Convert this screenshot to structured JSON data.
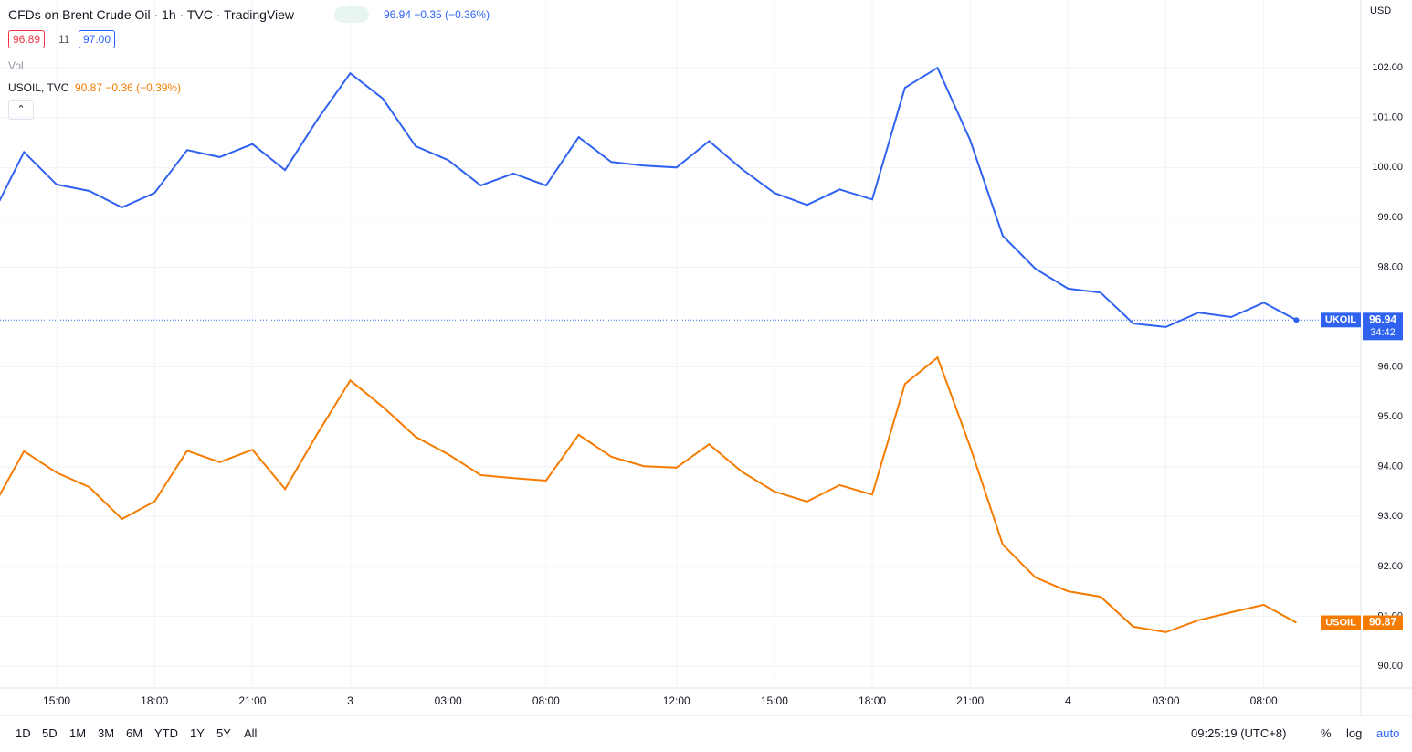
{
  "header": {
    "title": "CFDs on Brent Crude Oil · 1h · TVC · TradingView",
    "quote": "96.94 −0.35 (−0.36%)",
    "bid": "96.89",
    "spread": "11",
    "ask": "97.00",
    "vol": "Vol",
    "compare_symbol": "USOIL, TVC",
    "compare_quote": "90.87 −0.36 (−0.39%)",
    "currency": "USD",
    "countdown": "34:42"
  },
  "toolbar": {
    "ranges": [
      "1D",
      "5D",
      "1M",
      "3M",
      "6M",
      "YTD",
      "1Y",
      "5Y",
      "All"
    ],
    "clock": "09:25:19 (UTC+8)",
    "percent": "%",
    "log": "log",
    "auto": "auto"
  },
  "chart_data": {
    "type": "line",
    "categories": [
      null,
      null,
      "15:00",
      null,
      null,
      "18:00",
      null,
      null,
      "21:00",
      null,
      null,
      "3",
      null,
      null,
      "03:00",
      null,
      null,
      "08:00",
      null,
      null,
      null,
      "12:00",
      null,
      null,
      "15:00",
      null,
      null,
      "18:00",
      null,
      null,
      "21:00",
      null,
      null,
      "4",
      null,
      null,
      "03:00",
      null,
      null,
      "08:00",
      null
    ],
    "series": [
      {
        "name": "UKOIL",
        "color": "#2f62f0",
        "values": [
          99.01,
          100.31,
          99.66,
          99.53,
          99.2,
          99.49,
          100.35,
          100.21,
          100.47,
          99.95,
          100.97,
          101.89,
          101.38,
          100.43,
          100.15,
          99.64,
          99.88,
          99.64,
          100.61,
          100.11,
          100.04,
          100,
          100.53,
          99.97,
          99.49,
          99.25,
          99.56,
          99.36,
          101.6,
          102,
          100.55,
          98.63,
          97.97,
          97.57,
          97.49,
          96.87,
          96.8,
          97.09,
          97,
          97.29,
          96.94
        ]
      },
      {
        "name": "USOIL",
        "color": "#f57c00",
        "values": [
          93.13,
          94.31,
          93.88,
          93.59,
          92.95,
          93.3,
          94.32,
          94.09,
          94.34,
          93.55,
          94.67,
          95.73,
          95.2,
          94.6,
          94.25,
          93.83,
          93.77,
          93.72,
          94.64,
          94.2,
          94.01,
          93.98,
          94.45,
          93.9,
          93.5,
          93.3,
          93.63,
          93.44,
          95.66,
          96.19,
          94.4,
          92.44,
          91.78,
          91.5,
          91.39,
          90.79,
          90.68,
          90.92,
          91.08,
          91.23,
          90.87
        ]
      }
    ],
    "ylim": [
      89.56,
      103.36
    ],
    "yticks": [
      {
        "value": 90,
        "label": "90.00"
      },
      {
        "value": 91,
        "label": "91.00"
      },
      {
        "value": 92,
        "label": "92.00"
      },
      {
        "value": 93,
        "label": "93.00"
      },
      {
        "value": 94,
        "label": "94.00"
      },
      {
        "value": 95,
        "label": "95.00"
      },
      {
        "value": 96,
        "label": "96.00"
      },
      {
        "value": 98,
        "label": "98.00"
      },
      {
        "value": 99,
        "label": "99.00"
      },
      {
        "value": 100,
        "label": "100.00"
      },
      {
        "value": 101,
        "label": "101.00"
      },
      {
        "value": 102,
        "label": "102.00"
      }
    ],
    "grid": true
  }
}
